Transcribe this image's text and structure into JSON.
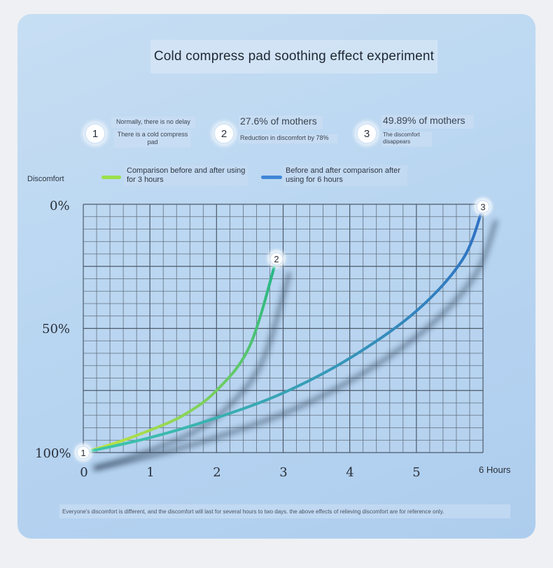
{
  "title": "Cold compress pad soothing effect experiment",
  "notes": [
    {
      "number": "1",
      "line1": "Normally, there is no delay",
      "line2": "There is a cold compress pad"
    },
    {
      "number": "2",
      "line1": "27.6% of mothers",
      "line2": "Reduction in discomfort by 78%"
    },
    {
      "number": "3",
      "line1": "49.89% of mothers",
      "line2": "The discomfort disappears"
    }
  ],
  "legend": {
    "y_axis_label": "Discomfort",
    "series1": "Comparison before and after using for 3 hours",
    "series2": "Before and after comparison after using for 6 hours"
  },
  "footnote": "Everyone's discomfort is different, and the discomfort will last for several hours to two days. the above effects of relieving discomfort are for reference only.",
  "chart_data": {
    "type": "line",
    "xlabel": "Hours",
    "ylabel": "Discomfort",
    "x_ticks": [
      "0",
      "1",
      "2",
      "3",
      "4",
      "5",
      "6 Hours"
    ],
    "y_ticks": [
      "0%",
      "50%",
      "100%"
    ],
    "xlim": [
      0,
      6
    ],
    "ylim": [
      100,
      0
    ],
    "grid": true,
    "series": [
      {
        "name": "Comparison before and after using for 3 hours",
        "color_start": "#c6e63a",
        "color_end": "#1fb58a",
        "end_marker": "2",
        "points": [
          [
            0,
            100
          ],
          [
            0.5,
            96
          ],
          [
            1,
            91
          ],
          [
            1.5,
            85
          ],
          [
            2,
            75
          ],
          [
            2.5,
            57
          ],
          [
            2.9,
            22
          ]
        ]
      },
      {
        "name": "Before and after comparison after using for 6 hours",
        "color_start": "#3ec9a9",
        "color_end": "#2f6fc4",
        "end_marker": "3",
        "points": [
          [
            0,
            100
          ],
          [
            1,
            94
          ],
          [
            2,
            86
          ],
          [
            3,
            76
          ],
          [
            4,
            62
          ],
          [
            5,
            43
          ],
          [
            5.7,
            22
          ],
          [
            6,
            1
          ]
        ]
      }
    ],
    "start_marker": "1"
  }
}
